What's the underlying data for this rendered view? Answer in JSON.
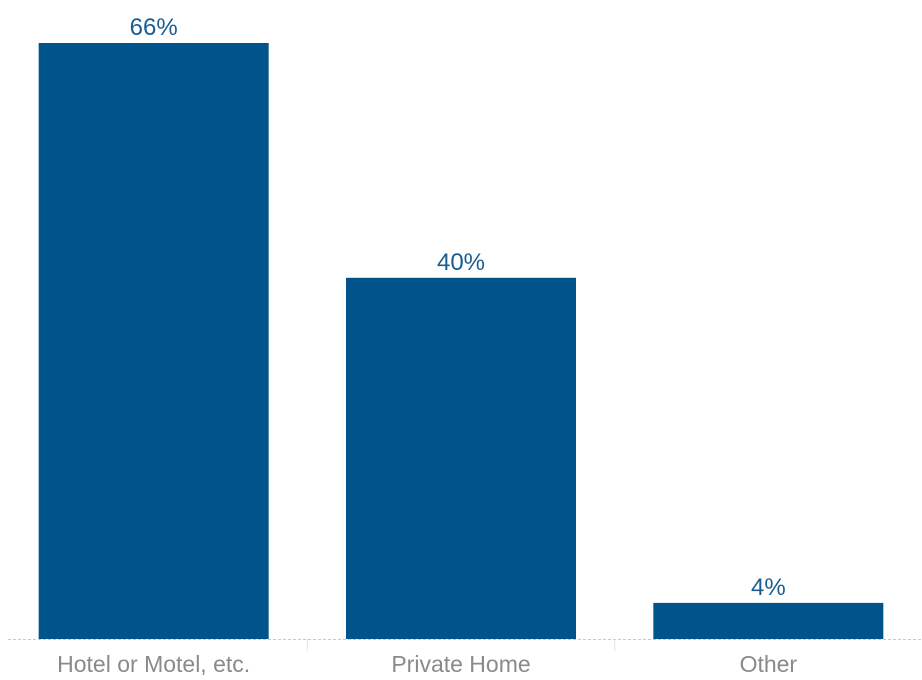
{
  "chart_data": {
    "type": "bar",
    "categories": [
      "Hotel or Motel, etc.",
      "Private Home",
      "Other"
    ],
    "values": [
      66,
      40,
      4
    ],
    "value_labels": [
      "66%",
      "40%",
      "4%"
    ],
    "title": "",
    "xlabel": "",
    "ylabel": "",
    "ylim": [
      0,
      66
    ],
    "grid": false,
    "bar_color": "#00548b",
    "value_label_color": "#1a5d91",
    "tick_label_color": "#8a8a8a",
    "axis_color": "#c8c8c8"
  }
}
